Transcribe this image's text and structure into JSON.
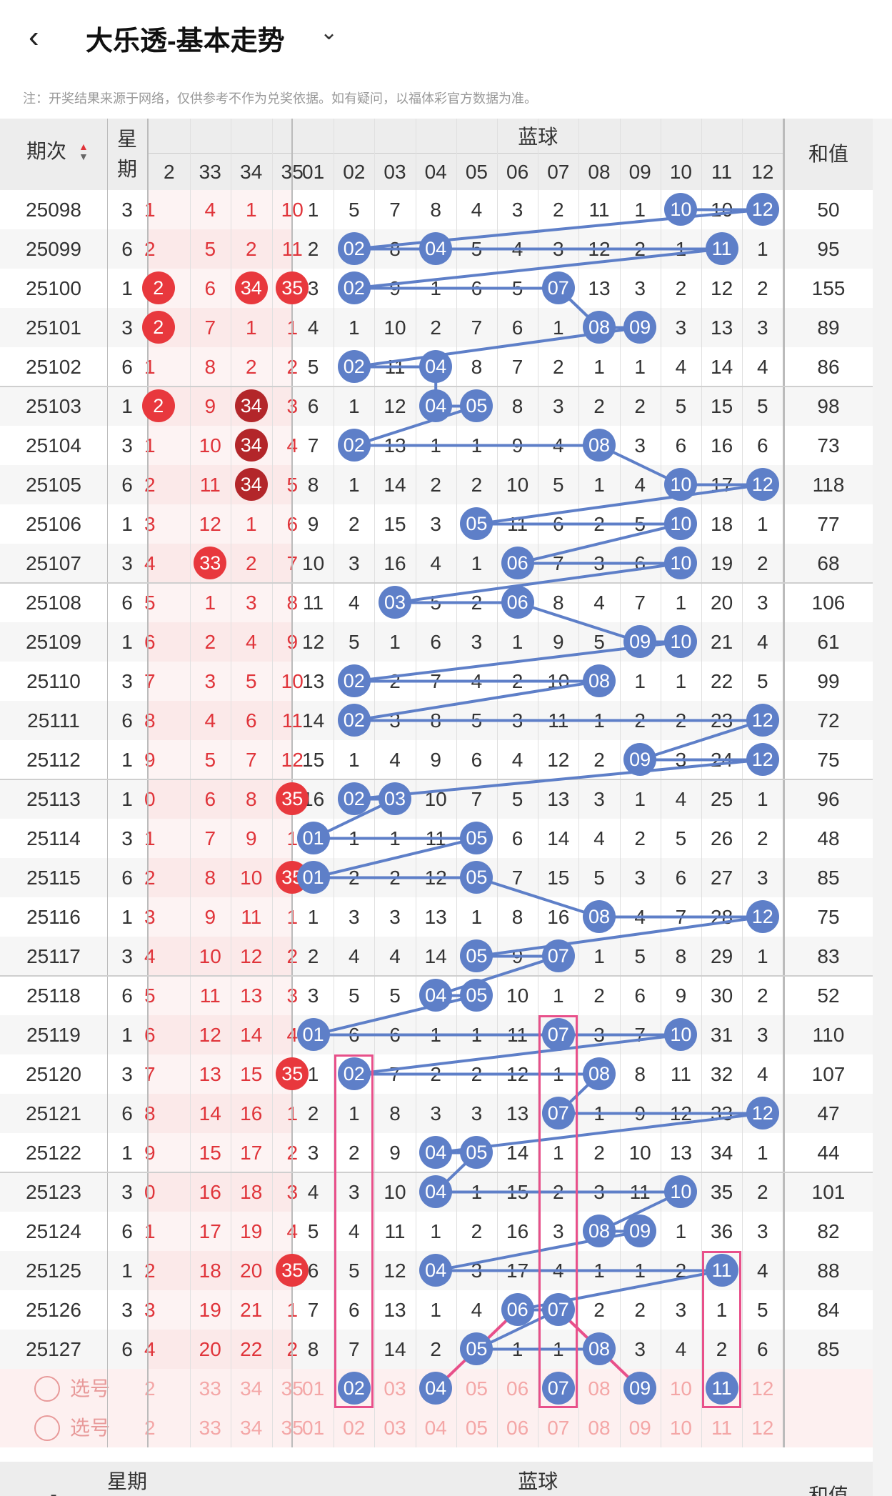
{
  "header": {
    "title": "大乐透-基本走势",
    "back_icon": "chevron-left-icon",
    "dropdown_icon": "chevron-down-icon"
  },
  "note": "注：开奖结果来源于网络，仅供参考不作为兑奖依据。如有疑问，以福体彩官方数据为准。",
  "table": {
    "col_period": "期次",
    "col_week": "星期",
    "col_blue": "蓝球",
    "col_sum": "和值",
    "front_cols": [
      "2",
      "33",
      "34",
      "35"
    ],
    "blue_cols": [
      "01",
      "02",
      "03",
      "04",
      "05",
      "06",
      "07",
      "08",
      "09",
      "10",
      "11",
      "12"
    ],
    "rows": [
      {
        "p": "25098",
        "w": "3",
        "f": [
          "1",
          "4",
          "1",
          "10"
        ],
        "b": [
          "1",
          "5",
          "7",
          "8",
          "4",
          "3",
          "2",
          "11",
          "1",
          "10",
          "10",
          "12"
        ],
        "s": "50"
      },
      {
        "p": "25099",
        "w": "6",
        "f": [
          "2",
          "5",
          "2",
          "11"
        ],
        "b": [
          "2",
          "02",
          "8",
          "04",
          "5",
          "4",
          "3",
          "12",
          "2",
          "1",
          "11",
          "1"
        ],
        "s": "95"
      },
      {
        "p": "25100",
        "w": "1",
        "f": [
          "2",
          "6",
          "34",
          "35"
        ],
        "b": [
          "3",
          "02",
          "9",
          "1",
          "6",
          "5",
          "07",
          "13",
          "3",
          "2",
          "12",
          "2"
        ],
        "s": "155"
      },
      {
        "p": "25101",
        "w": "3",
        "f": [
          "2",
          "7",
          "1",
          "1"
        ],
        "b": [
          "4",
          "1",
          "10",
          "2",
          "7",
          "6",
          "1",
          "08",
          "09",
          "3",
          "13",
          "3"
        ],
        "s": "89"
      },
      {
        "p": "25102",
        "w": "6",
        "f": [
          "1",
          "8",
          "2",
          "2"
        ],
        "b": [
          "5",
          "02",
          "11",
          "04",
          "8",
          "7",
          "2",
          "1",
          "1",
          "4",
          "14",
          "4"
        ],
        "s": "86"
      },
      {
        "p": "25103",
        "w": "1",
        "f": [
          "2",
          "9",
          "34",
          "3"
        ],
        "b": [
          "6",
          "1",
          "12",
          "04",
          "05",
          "8",
          "3",
          "2",
          "2",
          "5",
          "15",
          "5"
        ],
        "s": "98"
      },
      {
        "p": "25104",
        "w": "3",
        "f": [
          "1",
          "10",
          "34",
          "4"
        ],
        "b": [
          "7",
          "02",
          "13",
          "1",
          "1",
          "9",
          "4",
          "08",
          "3",
          "6",
          "16",
          "6"
        ],
        "s": "73"
      },
      {
        "p": "25105",
        "w": "6",
        "f": [
          "2",
          "11",
          "34",
          "5"
        ],
        "b": [
          "8",
          "1",
          "14",
          "2",
          "2",
          "10",
          "5",
          "1",
          "4",
          "10",
          "17",
          "12"
        ],
        "s": "118"
      },
      {
        "p": "25106",
        "w": "1",
        "f": [
          "3",
          "12",
          "1",
          "6"
        ],
        "b": [
          "9",
          "2",
          "15",
          "3",
          "05",
          "11",
          "6",
          "2",
          "5",
          "10",
          "18",
          "1"
        ],
        "s": "77"
      },
      {
        "p": "25107",
        "w": "3",
        "f": [
          "4",
          "33",
          "2",
          "7"
        ],
        "b": [
          "10",
          "3",
          "16",
          "4",
          "1",
          "06",
          "7",
          "3",
          "6",
          "10",
          "19",
          "2"
        ],
        "s": "68"
      },
      {
        "p": "25108",
        "w": "6",
        "f": [
          "5",
          "1",
          "3",
          "8"
        ],
        "b": [
          "11",
          "4",
          "03",
          "5",
          "2",
          "06",
          "8",
          "4",
          "7",
          "1",
          "20",
          "3"
        ],
        "s": "106"
      },
      {
        "p": "25109",
        "w": "1",
        "f": [
          "6",
          "2",
          "4",
          "9"
        ],
        "b": [
          "12",
          "5",
          "1",
          "6",
          "3",
          "1",
          "9",
          "5",
          "09",
          "10",
          "21",
          "4"
        ],
        "s": "61"
      },
      {
        "p": "25110",
        "w": "3",
        "f": [
          "7",
          "3",
          "5",
          "10"
        ],
        "b": [
          "13",
          "02",
          "2",
          "7",
          "4",
          "2",
          "10",
          "08",
          "1",
          "1",
          "22",
          "5"
        ],
        "s": "99"
      },
      {
        "p": "25111",
        "w": "6",
        "f": [
          "8",
          "4",
          "6",
          "11"
        ],
        "b": [
          "14",
          "02",
          "3",
          "8",
          "5",
          "3",
          "11",
          "1",
          "2",
          "2",
          "23",
          "12"
        ],
        "s": "72"
      },
      {
        "p": "25112",
        "w": "1",
        "f": [
          "9",
          "5",
          "7",
          "12"
        ],
        "b": [
          "15",
          "1",
          "4",
          "9",
          "6",
          "4",
          "12",
          "2",
          "09",
          "3",
          "24",
          "12"
        ],
        "s": "75"
      },
      {
        "p": "25113",
        "w": "1",
        "f": [
          "0",
          "6",
          "8",
          "35"
        ],
        "b": [
          "16",
          "02",
          "03",
          "10",
          "7",
          "5",
          "13",
          "3",
          "1",
          "4",
          "25",
          "1"
        ],
        "s": "96"
      },
      {
        "p": "25114",
        "w": "3",
        "f": [
          "1",
          "7",
          "9",
          "1"
        ],
        "b": [
          "01",
          "1",
          "1",
          "11",
          "05",
          "6",
          "14",
          "4",
          "2",
          "5",
          "26",
          "2"
        ],
        "s": "48"
      },
      {
        "p": "25115",
        "w": "6",
        "f": [
          "2",
          "8",
          "10",
          "35"
        ],
        "b": [
          "01",
          "2",
          "2",
          "12",
          "05",
          "7",
          "15",
          "5",
          "3",
          "6",
          "27",
          "3"
        ],
        "s": "85"
      },
      {
        "p": "25116",
        "w": "1",
        "f": [
          "3",
          "9",
          "11",
          "1"
        ],
        "b": [
          "1",
          "3",
          "3",
          "13",
          "1",
          "8",
          "16",
          "08",
          "4",
          "7",
          "28",
          "12"
        ],
        "s": "75"
      },
      {
        "p": "25117",
        "w": "3",
        "f": [
          "4",
          "10",
          "12",
          "2"
        ],
        "b": [
          "2",
          "4",
          "4",
          "14",
          "05",
          "9",
          "07",
          "1",
          "5",
          "8",
          "29",
          "1"
        ],
        "s": "83"
      },
      {
        "p": "25118",
        "w": "6",
        "f": [
          "5",
          "11",
          "13",
          "3"
        ],
        "b": [
          "3",
          "5",
          "5",
          "04",
          "05",
          "10",
          "1",
          "2",
          "6",
          "9",
          "30",
          "2"
        ],
        "s": "52"
      },
      {
        "p": "25119",
        "w": "1",
        "f": [
          "6",
          "12",
          "14",
          "4"
        ],
        "b": [
          "01",
          "6",
          "6",
          "1",
          "1",
          "11",
          "07",
          "3",
          "7",
          "10",
          "31",
          "3"
        ],
        "s": "110"
      },
      {
        "p": "25120",
        "w": "3",
        "f": [
          "7",
          "13",
          "15",
          "35"
        ],
        "b": [
          "1",
          "02",
          "7",
          "2",
          "2",
          "12",
          "1",
          "08",
          "8",
          "11",
          "32",
          "4"
        ],
        "s": "107"
      },
      {
        "p": "25121",
        "w": "6",
        "f": [
          "8",
          "14",
          "16",
          "1"
        ],
        "b": [
          "2",
          "1",
          "8",
          "3",
          "3",
          "13",
          "07",
          "1",
          "9",
          "12",
          "33",
          "12"
        ],
        "s": "47"
      },
      {
        "p": "25122",
        "w": "1",
        "f": [
          "9",
          "15",
          "17",
          "2"
        ],
        "b": [
          "3",
          "2",
          "9",
          "04",
          "05",
          "14",
          "1",
          "2",
          "10",
          "13",
          "34",
          "1"
        ],
        "s": "44"
      },
      {
        "p": "25123",
        "w": "3",
        "f": [
          "0",
          "16",
          "18",
          "3"
        ],
        "b": [
          "4",
          "3",
          "10",
          "04",
          "1",
          "15",
          "2",
          "3",
          "11",
          "10",
          "35",
          "2"
        ],
        "s": "101"
      },
      {
        "p": "25124",
        "w": "6",
        "f": [
          "1",
          "17",
          "19",
          "4"
        ],
        "b": [
          "5",
          "4",
          "11",
          "1",
          "2",
          "16",
          "3",
          "08",
          "09",
          "1",
          "36",
          "3"
        ],
        "s": "82"
      },
      {
        "p": "25125",
        "w": "1",
        "f": [
          "2",
          "18",
          "20",
          "35"
        ],
        "b": [
          "6",
          "5",
          "12",
          "04",
          "3",
          "17",
          "4",
          "1",
          "1",
          "2",
          "11",
          "4"
        ],
        "s": "88"
      },
      {
        "p": "25126",
        "w": "3",
        "f": [
          "3",
          "19",
          "21",
          "1"
        ],
        "b": [
          "7",
          "6",
          "13",
          "1",
          "4",
          "06",
          "07",
          "2",
          "2",
          "3",
          "1",
          "5"
        ],
        "s": "84"
      },
      {
        "p": "25127",
        "w": "6",
        "f": [
          "4",
          "20",
          "22",
          "2"
        ],
        "b": [
          "8",
          "7",
          "14",
          "2",
          "05",
          "1",
          "1",
          "08",
          "3",
          "4",
          "2",
          "6"
        ],
        "s": "85"
      }
    ],
    "select_label": "选号",
    "select_front": [
      "2",
      "33",
      "34",
      "35"
    ],
    "select_blue": [
      "01",
      "02",
      "03",
      "04",
      "05",
      "06",
      "07",
      "08",
      "09",
      "10",
      "11",
      "12"
    ],
    "picked_blue": [
      "02",
      "04",
      "07",
      "09",
      "11"
    ],
    "footer_period": "-",
    "footer_week": "星期",
    "footer_week2": "期",
    "footer_blue": "蓝球",
    "footer_sum": "和值"
  },
  "colors": {
    "blue_ball": "#5e7fc8",
    "red_ball": "#e8383d",
    "highlight_box": "#e8508a"
  }
}
